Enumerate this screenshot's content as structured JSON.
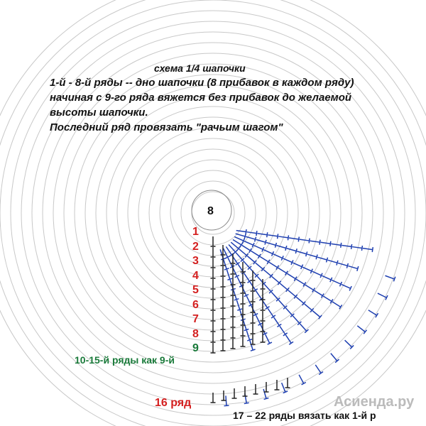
{
  "title": "схема 1/4 шапочки",
  "notes": [
    "1-й - 8-й ряды -- дно шапочки (8 прибавок в каждом ряду)",
    "начиная с 9-го ряда вяжется без прибавок до желаемой",
    "высоты шапочки.",
    "Последний ряд провязать \"рачьим шагом\""
  ],
  "center_label": "8",
  "row_labels": [
    "1",
    "2",
    "3",
    "4",
    "5",
    "6",
    "7",
    "8",
    "9"
  ],
  "rows_10_15": "10-15-й ряды как 9-й",
  "row_16": "16 ряд",
  "rows_17_22": "17 – 22 ряды вязать как 1-й р",
  "watermark": "Асиенда.ру"
}
